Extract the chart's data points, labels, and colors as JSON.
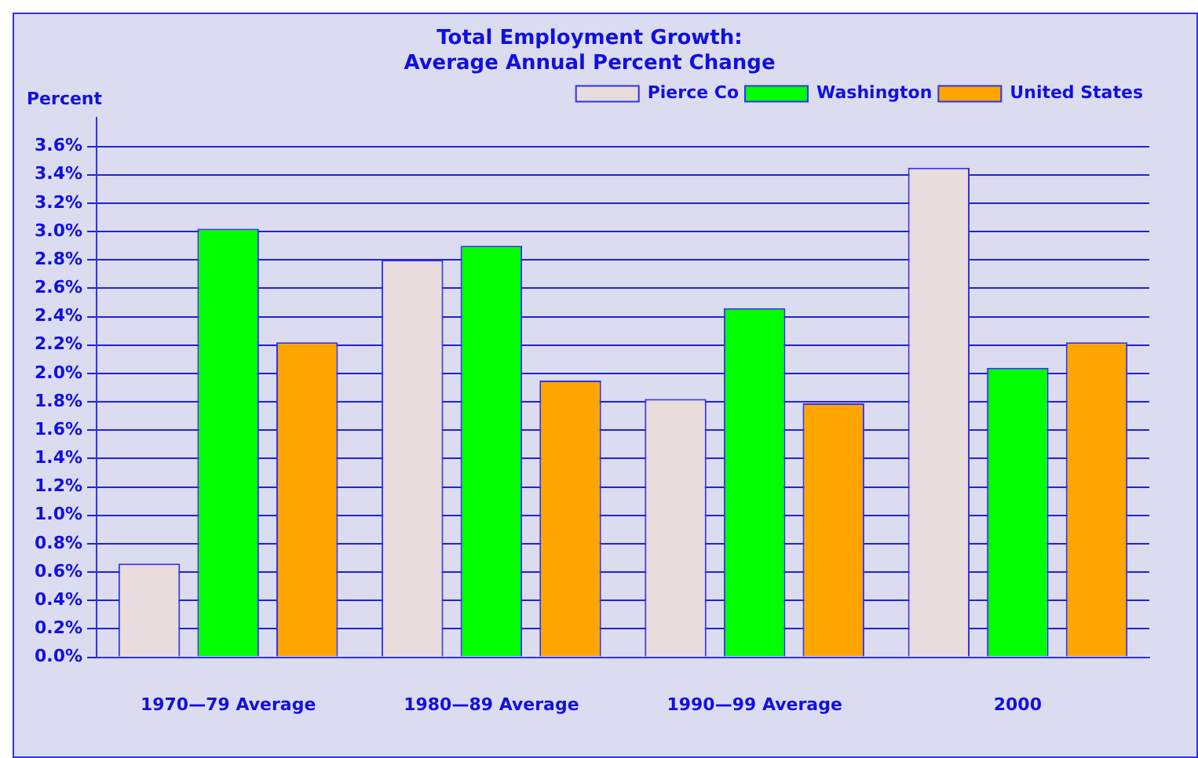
{
  "chart_data": {
    "type": "bar",
    "title": [
      "Total Employment Growth:",
      "Average Annual Percent Change"
    ],
    "ylabel": "Percent",
    "categories": [
      "1970—79 Average",
      "1980—89 Average",
      "1990—99 Average",
      "2000"
    ],
    "series": [
      {
        "name": "Pierce Co",
        "color": "#e8dcdc",
        "values": [
          0.66,
          2.8,
          1.82,
          3.45
        ]
      },
      {
        "name": "Washington",
        "color": "#00ff00",
        "values": [
          3.02,
          2.9,
          2.46,
          2.04
        ]
      },
      {
        "name": "United States",
        "color": "#ffa500",
        "values": [
          2.22,
          1.95,
          1.79,
          2.22
        ]
      }
    ],
    "ylim": [
      0,
      3.8
    ],
    "yticks": [
      {
        "value": 0,
        "label": "0.0%"
      },
      {
        "value": 0.2,
        "label": "0.2%"
      },
      {
        "value": 0.4,
        "label": "0.4%"
      },
      {
        "value": 0.6,
        "label": "0.6%"
      },
      {
        "value": 0.8,
        "label": "0.8%"
      },
      {
        "value": 1.0,
        "label": "1.0%"
      },
      {
        "value": 1.2,
        "label": "1.2%"
      },
      {
        "value": 1.4,
        "label": "1.4%"
      },
      {
        "value": 1.6,
        "label": "1.6%"
      },
      {
        "value": 1.8,
        "label": "1.8%"
      },
      {
        "value": 2.0,
        "label": "2.0%"
      },
      {
        "value": 2.2,
        "label": "2.2%"
      },
      {
        "value": 2.4,
        "label": "2.4%"
      },
      {
        "value": 2.6,
        "label": "2.6%"
      },
      {
        "value": 2.8,
        "label": "2.8%"
      },
      {
        "value": 3.0,
        "label": "3.0%"
      },
      {
        "value": 3.2,
        "label": "3.2%"
      },
      {
        "value": 3.4,
        "label": "3.4%"
      },
      {
        "value": 3.6,
        "label": "3.6%"
      }
    ],
    "grid": "y",
    "legend": "top right"
  }
}
